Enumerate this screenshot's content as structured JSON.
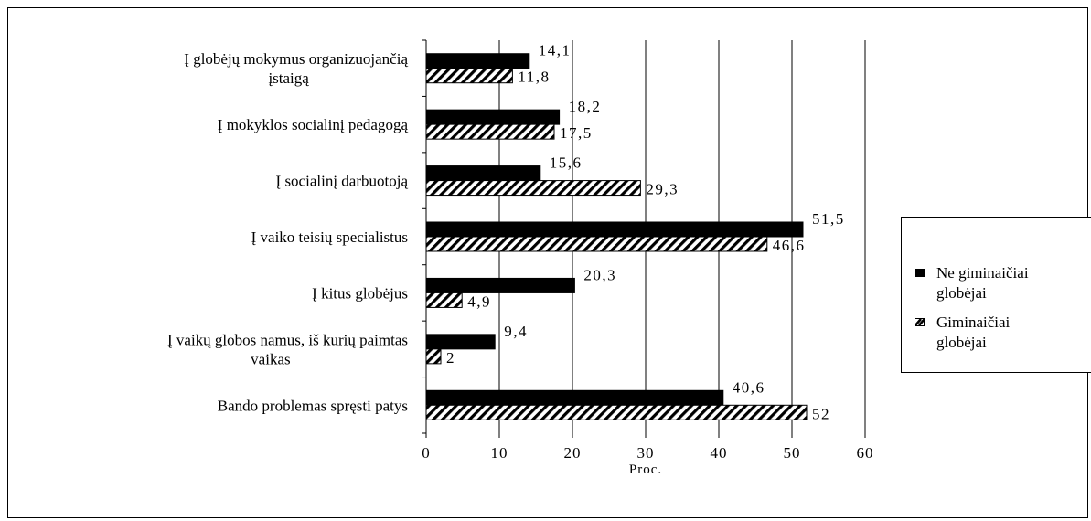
{
  "chart_data": {
    "type": "bar",
    "orientation": "horizontal",
    "categories": [
      [
        "Į globėjų mokymus organizuojančią",
        "įstaigą"
      ],
      [
        "Į mokyklos socialinį pedagogą"
      ],
      [
        "Į socialinį darbuotoją"
      ],
      [
        "Į vaiko teisių specialistus"
      ],
      [
        "Į kitus globėjus"
      ],
      [
        "Į vaikų globos namus, iš kurių paimtas",
        "vaikas"
      ],
      [
        "Bando problemas spręsti patys"
      ]
    ],
    "series": [
      {
        "name": "Ne giminaičiai globėjai",
        "fill": "solid",
        "color": "#000000",
        "values": [
          14.1,
          18.2,
          15.6,
          51.5,
          20.3,
          9.4,
          40.6
        ],
        "labels": [
          "14,1",
          "18,2",
          "15,6",
          "51,5",
          "20,3",
          "9,4",
          "40,6"
        ]
      },
      {
        "name": "Giminaičiai globėjai",
        "fill": "hatched",
        "color": "#000000",
        "values": [
          11.8,
          17.5,
          29.3,
          46.6,
          4.9,
          2,
          52
        ],
        "labels": [
          "11,8",
          "17,5",
          "29,3",
          "46,6",
          "4,9",
          "2",
          "52"
        ]
      }
    ],
    "xlabel": "Proc.",
    "xlim": [
      0,
      60
    ],
    "xticks": [
      0,
      10,
      20,
      30,
      40,
      50,
      60
    ],
    "grid": "vertical",
    "legend_position": "right"
  },
  "legend": {
    "items": [
      {
        "lines": [
          "Ne giminaičiai",
          "globėjai"
        ]
      },
      {
        "lines": [
          "Giminaičiai",
          "globėjai"
        ]
      }
    ]
  }
}
